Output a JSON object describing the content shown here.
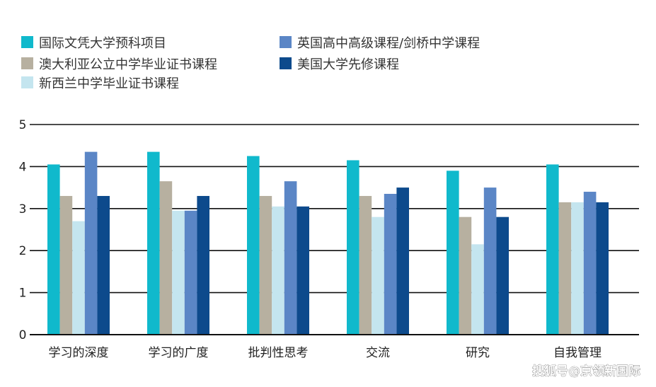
{
  "chart_data": {
    "type": "bar",
    "categories": [
      "学习的深度",
      "学习的广度",
      "批判性思考",
      "交流",
      "研究",
      "自我管理"
    ],
    "series": [
      {
        "name": "国际文凭大学预科项目",
        "color": "#10b9cc",
        "values": [
          4.05,
          4.35,
          4.25,
          4.15,
          3.9,
          4.05
        ]
      },
      {
        "name": "澳大利亚公立中学毕业证书课程",
        "color": "#b7b0a0",
        "values": [
          3.3,
          3.65,
          3.3,
          3.3,
          2.8,
          3.15
        ]
      },
      {
        "name": "新西兰中学毕业证书课程",
        "color": "#c4e5ef",
        "values": [
          2.7,
          2.95,
          3.05,
          2.8,
          2.15,
          3.15
        ]
      },
      {
        "name": "英国高中高级课程/剑桥中学课程",
        "color": "#5b86c6",
        "values": [
          4.35,
          2.95,
          3.65,
          3.35,
          3.5,
          3.4
        ]
      },
      {
        "name": "美国大学先修课程",
        "color": "#0d4a8c",
        "values": [
          3.3,
          3.3,
          3.05,
          3.5,
          2.8,
          3.15
        ]
      }
    ],
    "yticks": [
      0,
      1,
      2,
      3,
      4,
      5
    ],
    "ylim": [
      0,
      5
    ],
    "grid": true,
    "legend_position": "top-left"
  },
  "watermark": "搜狐号@京领新国际"
}
